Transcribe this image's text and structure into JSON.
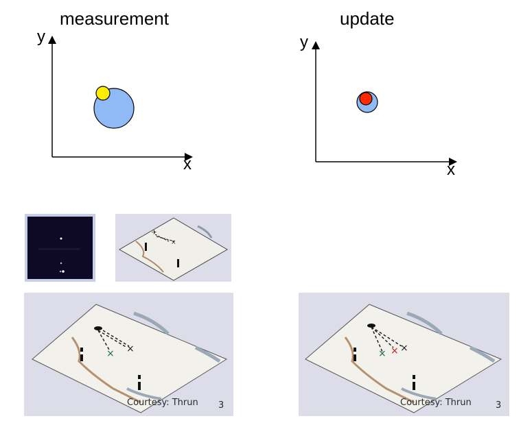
{
  "panels": {
    "measurement": {
      "title": "measurement",
      "y_label": "y",
      "x_label": "x"
    },
    "update": {
      "title": "update",
      "y_label": "y",
      "x_label": "x"
    }
  },
  "colors": {
    "prior": "#8fbaf5",
    "measurement": "#ffee00",
    "posterior": "#ff2a00",
    "map_bg": "#dcdde8",
    "dark_frame": "#0e0a25"
  },
  "photos": {
    "large_left": {
      "caption": "Courtesy: Thrun",
      "page": "3"
    },
    "large_right": {
      "caption": "Courtesy: Thrun",
      "page": "3"
    }
  }
}
